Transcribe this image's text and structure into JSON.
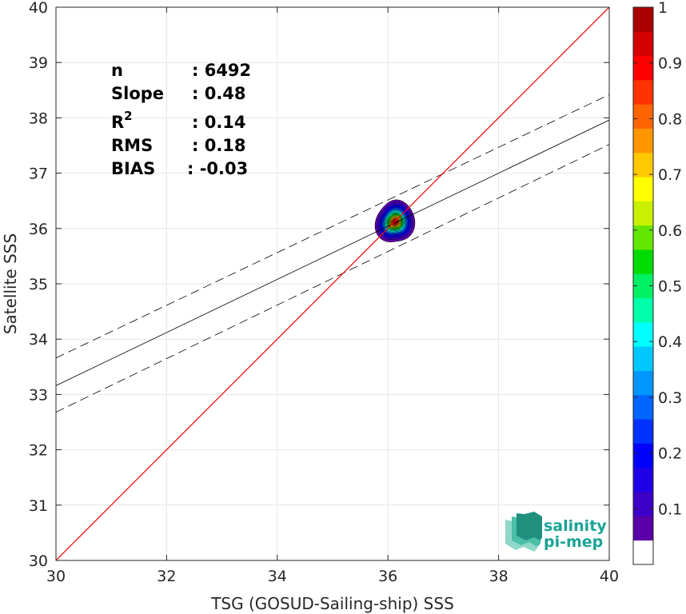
{
  "chart_data": {
    "type": "heatmap",
    "xlabel": "TSG (GOSUD-Sailing-ship) SSS",
    "ylabel": "Satellite SSS",
    "xlim": [
      30,
      40
    ],
    "ylim": [
      30,
      40
    ],
    "xticks": [
      30,
      32,
      34,
      36,
      38,
      40
    ],
    "yticks": [
      30,
      31,
      32,
      33,
      34,
      35,
      36,
      37,
      38,
      39,
      40
    ],
    "grid": true,
    "density": {
      "center": [
        36.13,
        36.12
      ],
      "levels": [
        0.05,
        0.1,
        0.15,
        0.2,
        0.25,
        0.3,
        0.35,
        0.4,
        0.45,
        0.5,
        0.55,
        0.6,
        0.65,
        0.7,
        0.75,
        0.8,
        0.85,
        0.9,
        0.95,
        1.0
      ]
    },
    "lines": {
      "identity": {
        "x": [
          30,
          40
        ],
        "y": [
          30,
          40
        ],
        "color": "#ff0000"
      },
      "regression": {
        "x": [
          30,
          40
        ],
        "y": [
          33.16,
          37.96
        ],
        "color": "#000000"
      },
      "upper_bound": {
        "x": [
          30,
          40
        ],
        "y": [
          33.66,
          38.42
        ],
        "style": "dashed"
      },
      "lower_bound": {
        "x": [
          30,
          40
        ],
        "y": [
          32.68,
          37.52
        ],
        "style": "dashed"
      }
    },
    "stats": [
      {
        "label": "n",
        "value": ": 6492"
      },
      {
        "label": "Slope",
        "value": ": 0.48"
      },
      {
        "label": "R",
        "sup": "2",
        "value": ": 0.14"
      },
      {
        "label": "RMS",
        "value": ": 0.18"
      },
      {
        "label": "BIAS",
        "value": ": -0.03"
      }
    ],
    "colorbar": {
      "min": 0,
      "max": 1,
      "ticks": [
        "0.1",
        "0.2",
        "0.3",
        "0.4",
        "0.5",
        "0.6",
        "0.7",
        "0.8",
        "0.9",
        "1"
      ],
      "colors": [
        "#ffffff",
        "#5a00a8",
        "#3c00c8",
        "#1e00e6",
        "#0000ff",
        "#0032ff",
        "#0064ff",
        "#0096ff",
        "#00c8ff",
        "#00ffff",
        "#00ffaa",
        "#00f064",
        "#00dc00",
        "#64e600",
        "#c8f000",
        "#ffff00",
        "#ffc800",
        "#ff9600",
        "#ff6400",
        "#ff3200",
        "#ff0000",
        "#d70000",
        "#aa0000"
      ]
    }
  },
  "logo": {
    "line1": "salinity",
    "line2": "pi-mep"
  }
}
